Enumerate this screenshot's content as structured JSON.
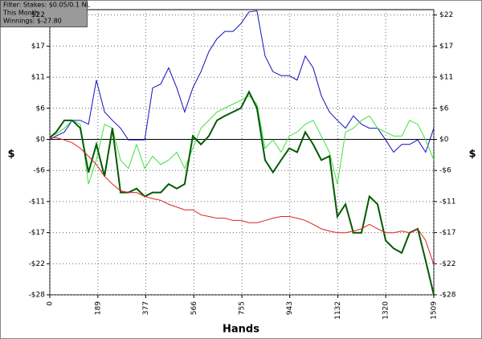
{
  "filter": [
    "Filter: Stakes: $0.05/0.1 NL",
    "This Month",
    "Winnings: $-27.80"
  ],
  "chart_data": {
    "type": "line",
    "x_label": "Hands",
    "y_label": "$",
    "y2_label": "$",
    "x": [
      0,
      25,
      57,
      88,
      120,
      152,
      183,
      215,
      246,
      278,
      309,
      341,
      373,
      404,
      436,
      467,
      499,
      530,
      562,
      594,
      625,
      657,
      688,
      720,
      751,
      783,
      814,
      846,
      877,
      909,
      941,
      972,
      1004,
      1035,
      1067,
      1099,
      1130,
      1162,
      1193,
      1225,
      1256,
      1288,
      1320,
      1351,
      1383,
      1414,
      1446,
      1477,
      1509
    ],
    "xlim": [
      0,
      1509
    ],
    "xticks": [
      0,
      189,
      377,
      566,
      755,
      943,
      1132,
      1320,
      1509
    ],
    "ylim": [
      -27.8,
      23.2
    ],
    "yticks": [
      {
        "value": -27.8,
        "label": "-$28"
      },
      {
        "value": -22.24,
        "label": "-$22"
      },
      {
        "value": -16.68,
        "label": "-$17"
      },
      {
        "value": -11.12,
        "label": "-$11"
      },
      {
        "value": -5.56,
        "label": "-$6"
      },
      {
        "value": 0,
        "label": "$0"
      },
      {
        "value": 5.56,
        "label": "$6"
      },
      {
        "value": 11.12,
        "label": "$11"
      },
      {
        "value": 16.68,
        "label": "$17"
      },
      {
        "value": 22.24,
        "label": "$22"
      }
    ],
    "grid": true,
    "series": [
      {
        "color": "#1010c0",
        "values": [
          0,
          0.6,
          1.3,
          3.4,
          3.4,
          2.7,
          10.6,
          4.9,
          3.4,
          2.0,
          -0.1,
          -0.1,
          -0.1,
          9.2,
          9.9,
          12.8,
          9.2,
          4.9,
          9.2,
          12.1,
          15.7,
          18.0,
          19.3,
          19.3,
          20.7,
          22.8,
          23.0,
          14.9,
          12.1,
          11.4,
          11.4,
          10.6,
          14.9,
          12.8,
          7.8,
          4.9,
          3.4,
          2.0,
          4.2,
          2.7,
          2.0,
          2.0,
          -0.1,
          -2.3,
          -0.9,
          -0.9,
          -0.1,
          -2.3,
          2.0
        ]
      },
      {
        "color": "#40e040",
        "values": [
          0.6,
          0.9,
          2.0,
          3.4,
          2.7,
          -8.0,
          -3.7,
          2.7,
          2.0,
          -3.7,
          -5.2,
          -0.9,
          -5.2,
          -3.0,
          -4.5,
          -3.7,
          -2.3,
          -5.2,
          -1.6,
          2.0,
          3.4,
          4.9,
          5.6,
          6.3,
          7.0,
          7.8,
          6.3,
          -1.6,
          -0.1,
          -2.3,
          0.6,
          1.3,
          2.7,
          3.4,
          0.6,
          -2.3,
          -8.0,
          1.3,
          2.0,
          3.4,
          4.2,
          2.0,
          1.3,
          0.6,
          0.6,
          3.4,
          2.7,
          -0.1,
          -3.7
        ]
      },
      {
        "color": "#005a00",
        "values": [
          0.3,
          1.3,
          3.4,
          3.4,
          2.0,
          -5.9,
          -0.9,
          -6.6,
          2.0,
          -9.5,
          -9.5,
          -8.8,
          -10.2,
          -9.5,
          -9.5,
          -8.0,
          -8.8,
          -8.0,
          0.6,
          -0.9,
          0.6,
          3.4,
          4.2,
          4.9,
          5.6,
          8.5,
          5.6,
          -3.7,
          -5.9,
          -3.7,
          -1.6,
          -2.3,
          1.3,
          -0.9,
          -3.7,
          -3.0,
          -13.8,
          -11.6,
          -16.7,
          -16.7,
          -10.2,
          -11.6,
          -18.1,
          -19.5,
          -20.3,
          -16.7,
          -16.0,
          -21.7,
          -27.8
        ]
      },
      {
        "color": "#e02020",
        "values": [
          0.3,
          0.3,
          -0.1,
          -0.6,
          -1.6,
          -3.0,
          -4.5,
          -6.6,
          -8.0,
          -9.2,
          -9.5,
          -9.5,
          -10.2,
          -10.6,
          -10.9,
          -11.6,
          -12.1,
          -12.6,
          -12.6,
          -13.5,
          -13.8,
          -14.1,
          -14.1,
          -14.5,
          -14.5,
          -14.9,
          -14.9,
          -14.5,
          -14.1,
          -13.8,
          -13.8,
          -14.1,
          -14.5,
          -15.2,
          -16.0,
          -16.4,
          -16.7,
          -16.7,
          -16.4,
          -16.0,
          -15.2,
          -16.0,
          -16.7,
          -16.7,
          -16.4,
          -16.7,
          -16.0,
          -18.1,
          -22.4
        ]
      }
    ]
  }
}
